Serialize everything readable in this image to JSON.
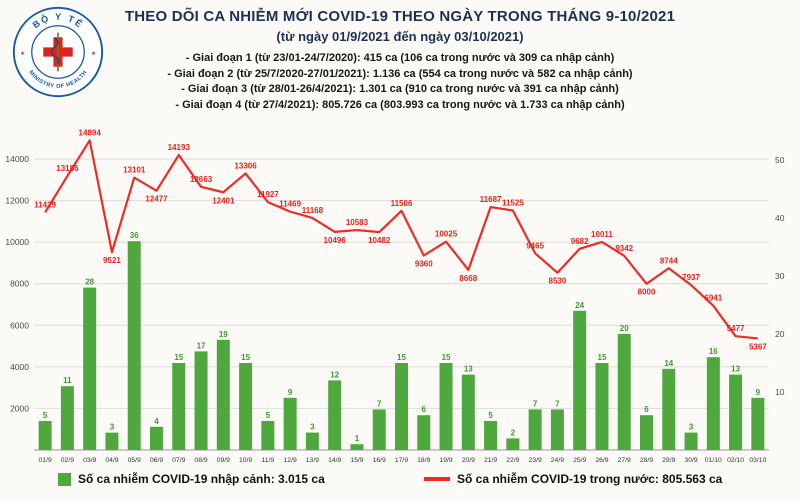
{
  "logo": {
    "top_text": "BỘ Y TẾ",
    "bottom_text": "MINISTRY OF HEALTH"
  },
  "header": {
    "title": "THEO DÕI CA NHIỄM MỚI COVID-19 THEO NGÀY TRONG THÁNG 9-10/2021",
    "subtitle": "(từ ngày 01/9/2021 đến ngày 03/10/2021)",
    "notes": [
      "- Giai đoạn 1 (từ 23/01-24/7/2020): 415 ca (106 ca trong nước và 309 ca nhập cảnh)",
      "- Giai đoạn 2 (từ 25/7/2020-27/01/2021): 1.136 ca (554 ca trong nước và 582 ca nhập cảnh)",
      "- Giai đoạn 3 (từ 28/01-26/4/2021): 1.301 ca (910 ca trong nước và 391 ca nhập cảnh)",
      "- Giai đoạn 4 (từ 27/4/2021): 805.726 ca (803.993 ca trong nước và 1.733 ca nhập cảnh)"
    ]
  },
  "chart_data": {
    "type": "bar+line combo",
    "title": "THEO DÕI CA NHIỄM MỚI COVID-19 THEO NGÀY TRONG THÁNG 9-10/2021",
    "subtitle": "(từ ngày 01/9/2021 đến ngày 03/10/2021)",
    "categories": [
      "01/9",
      "02/9",
      "03/9",
      "04/9",
      "05/9",
      "06/9",
      "07/9",
      "08/9",
      "09/9",
      "10/9",
      "11/9",
      "12/9",
      "13/9",
      "14/9",
      "15/9",
      "16/9",
      "17/9",
      "18/9",
      "19/9",
      "20/9",
      "21/9",
      "22/9",
      "23/9",
      "24/9",
      "25/9",
      "26/9",
      "27/9",
      "28/9",
      "29/9",
      "30/9",
      "01/10",
      "02/10",
      "03/10"
    ],
    "series": [
      {
        "name": "Số ca nhiễm COVID-19 nhập cảnh",
        "type": "bar",
        "axis": "right",
        "color": "#4FA83D",
        "values": [
          5,
          11,
          28,
          3,
          36,
          4,
          15,
          17,
          19,
          15,
          5,
          9,
          3,
          12,
          1,
          7,
          15,
          6,
          15,
          13,
          5,
          2,
          7,
          7,
          24,
          15,
          20,
          6,
          14,
          3,
          16,
          13,
          9
        ]
      },
      {
        "name": "Số ca nhiễm COVID-19 trong nước",
        "type": "line",
        "axis": "left",
        "color": "#EC2D24",
        "values": [
          11429,
          13186,
          14894,
          9521,
          13101,
          12477,
          14193,
          12663,
          12401,
          13306,
          11927,
          11469,
          11168,
          10496,
          10583,
          10482,
          11506,
          9360,
          10025,
          8668,
          11687,
          11525,
          9465,
          8530,
          9682,
          10011,
          9342,
          8000,
          8744,
          7937,
          6941,
          5477,
          5367
        ]
      }
    ],
    "left_axis": {
      "ticks": [
        2000,
        4000,
        6000,
        8000,
        10000,
        12000,
        14000
      ],
      "plot_max": 15300,
      "grid": true
    },
    "right_axis": {
      "ticks": [
        10,
        20,
        30,
        40,
        50
      ],
      "plot_max": 55
    },
    "legend_position": "bottom"
  },
  "legend": {
    "items": [
      {
        "label": "Số ca nhiễm COVID-19 nhập cảnh: 3.015 ca"
      },
      {
        "label": "Số ca nhiễm COVID-19 trong nước: 805.563 ca"
      }
    ]
  }
}
